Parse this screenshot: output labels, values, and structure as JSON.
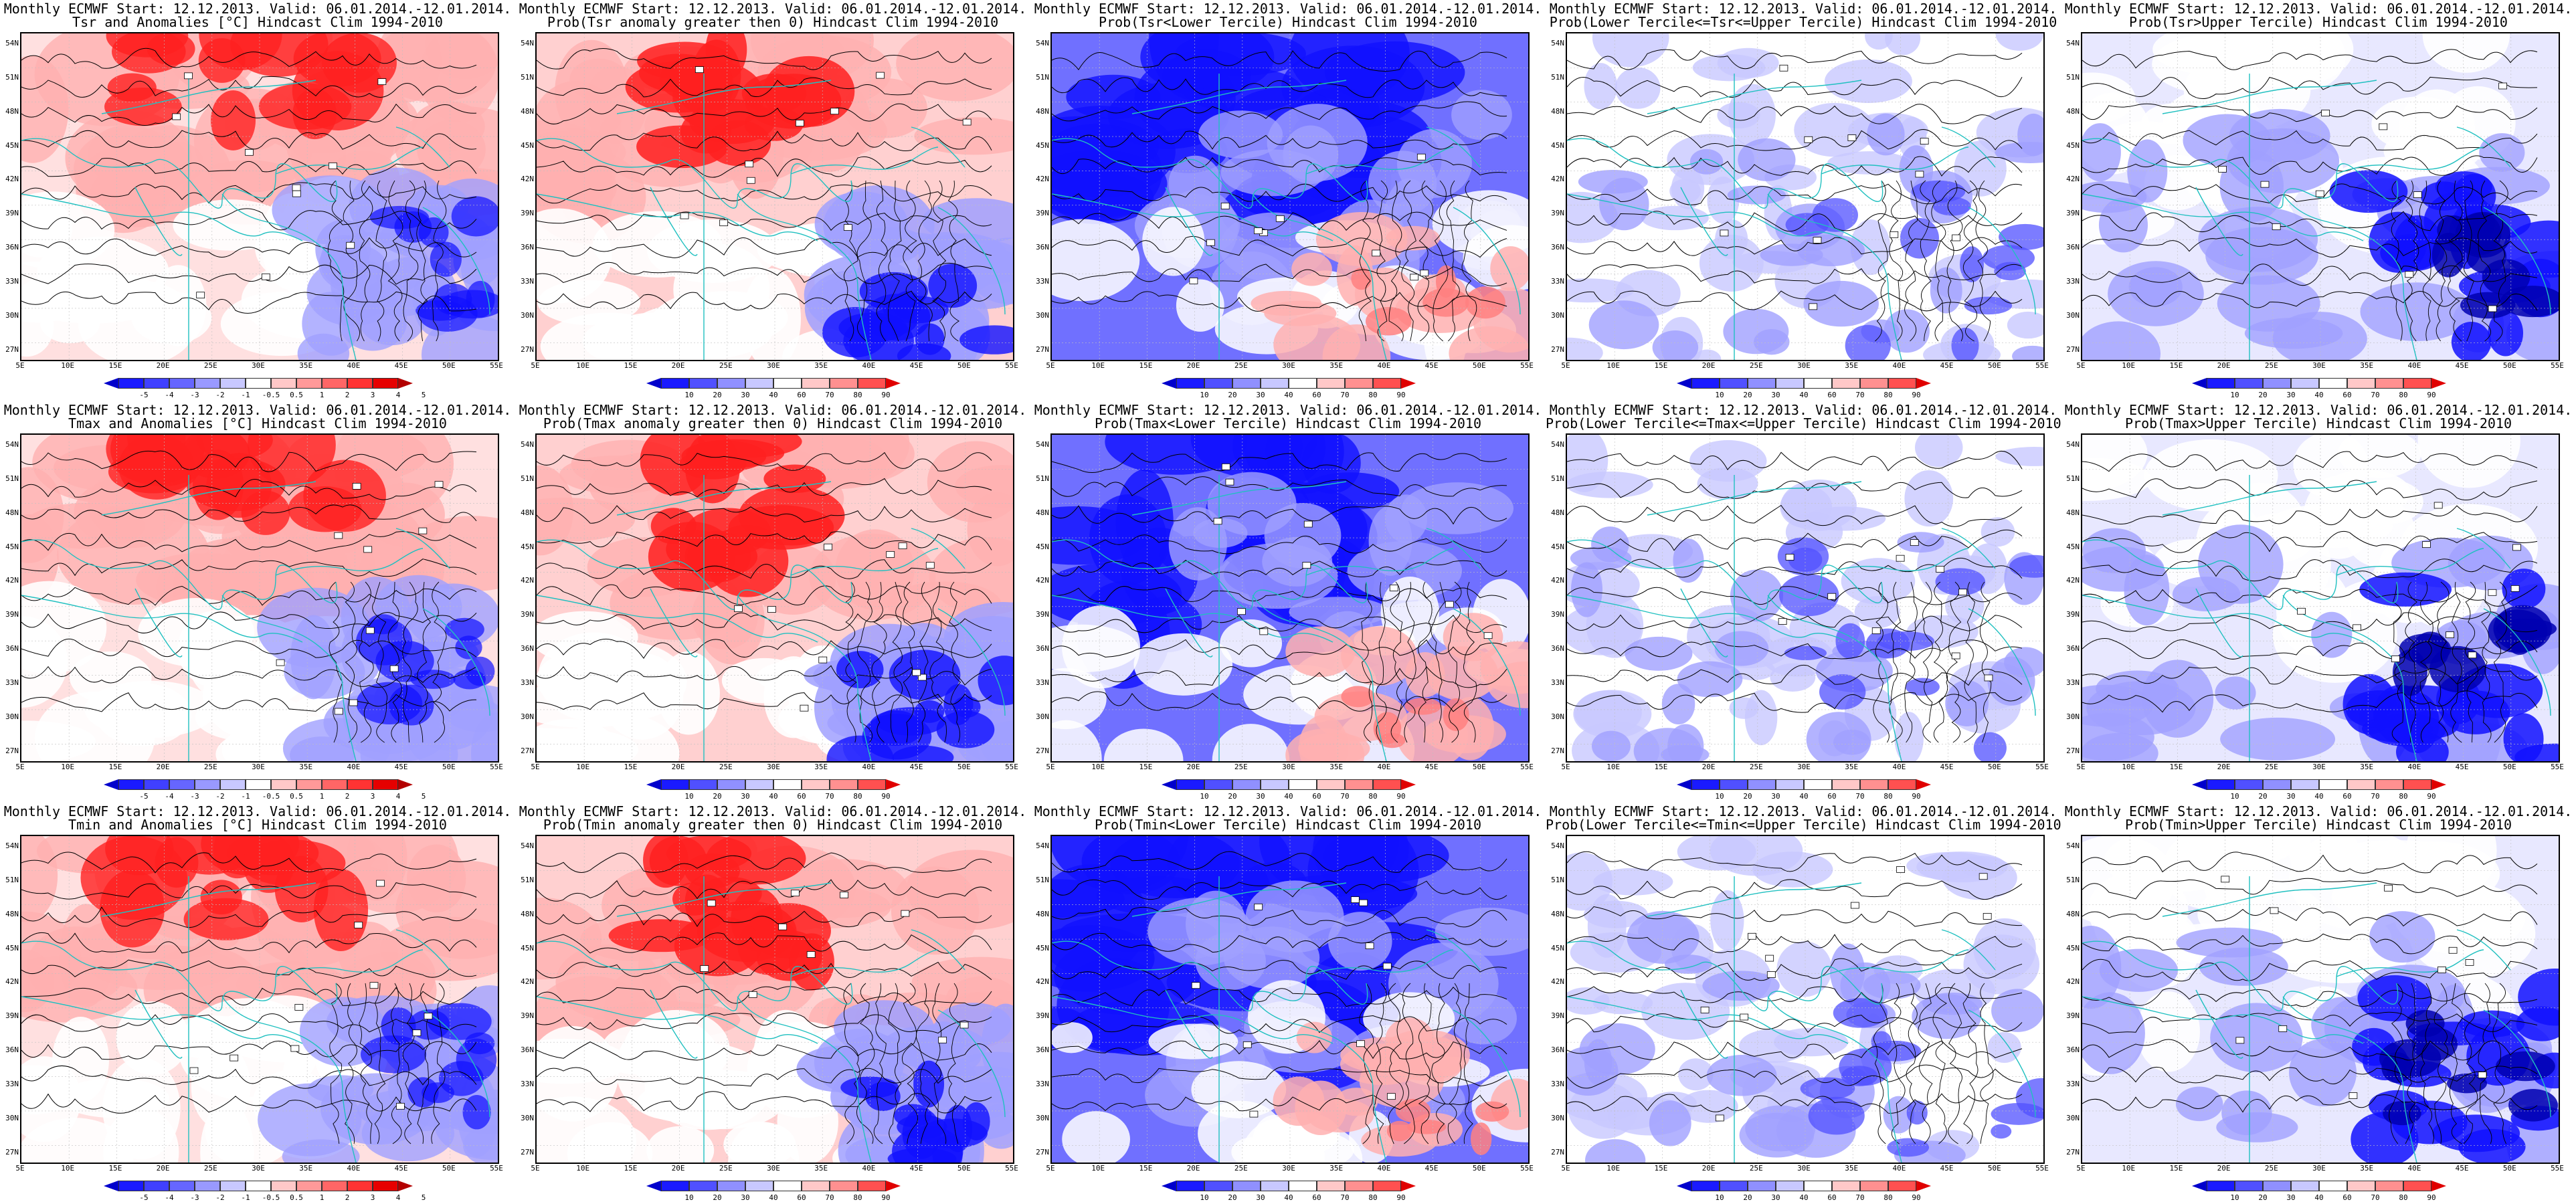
{
  "columns": [
    {
      "id": "anomaly",
      "scale": "anomaly"
    },
    {
      "id": "prob_gt0",
      "scale": "prob"
    },
    {
      "id": "prob_lower",
      "scale": "prob"
    },
    {
      "id": "prob_middle",
      "scale": "prob"
    },
    {
      "id": "prob_upper",
      "scale": "prob"
    }
  ],
  "panels": [
    [
      {
        "line1": "Monthly ECMWF Start: 12.12.2013. Valid: 06.01.2014.-12.01.2014.",
        "line2": "Tsr and Anomalies [°C] Hindcast Clim 1994-2010",
        "pattern": "anom"
      },
      {
        "line1": "Monthly ECMWF Start: 12.12.2013. Valid: 06.01.2014.-12.01.2014.",
        "line2": "Prob(Tsr anomaly greater then 0) Hindcast Clim 1994-2010",
        "pattern": "warm"
      },
      {
        "line1": "Monthly ECMWF Start: 12.12.2013. Valid: 06.01.2014.-12.01.2014.",
        "line2": "Prob(Tsr<Lower Tercile) Hindcast Clim 1994-2010",
        "pattern": "lowerprob"
      },
      {
        "line1": "Monthly ECMWF Start: 12.12.2013. Valid: 06.01.2014.-12.01.2014.",
        "line2": "Prob(Lower Tercile<=Tsr<=Upper Tercile) Hindcast Clim 1994-2010",
        "pattern": "mid"
      },
      {
        "line1": "Monthly ECMWF Start: 12.12.2013. Valid: 06.01.2014.-12.01.2014.",
        "line2": "Prob(Tsr>Upper Tercile) Hindcast Clim 1994-2010",
        "pattern": "upper"
      }
    ],
    [
      {
        "line1": "Monthly ECMWF Start: 12.12.2013. Valid: 06.01.2014.-12.01.2014.",
        "line2": "Tmax and Anomalies [°C] Hindcast Clim 1994-2010",
        "pattern": "anom"
      },
      {
        "line1": "Monthly ECMWF Start: 12.12.2013. Valid: 06.01.2014.-12.01.2014.",
        "line2": "Prob(Tmax anomaly greater then 0) Hindcast Clim 1994-2010",
        "pattern": "warm"
      },
      {
        "line1": "Monthly ECMWF Start: 12.12.2013. Valid: 06.01.2014.-12.01.2014.",
        "line2": "Prob(Tmax<Lower Tercile) Hindcast Clim 1994-2010",
        "pattern": "lowerprob"
      },
      {
        "line1": "Monthly ECMWF Start: 12.12.2013. Valid: 06.01.2014.-12.01.2014.",
        "line2": "Prob(Lower Tercile<=Tmax<=Upper Tercile) Hindcast Clim 1994-2010",
        "pattern": "mid"
      },
      {
        "line1": "Monthly ECMWF Start: 12.12.2013. Valid: 06.01.2014.-12.01.2014.",
        "line2": "Prob(Tmax>Upper Tercile) Hindcast Clim 1994-2010",
        "pattern": "upper"
      }
    ],
    [
      {
        "line1": "Monthly ECMWF Start: 12.12.2013. Valid: 06.01.2014.-12.01.2014.",
        "line2": "Tmin and Anomalies [°C] Hindcast Clim 1994-2010",
        "pattern": "anom"
      },
      {
        "line1": "Monthly ECMWF Start: 12.12.2013. Valid: 06.01.2014.-12.01.2014.",
        "line2": "Prob(Tmin anomaly greater then 0) Hindcast Clim 1994-2010",
        "pattern": "warm"
      },
      {
        "line1": "Monthly ECMWF Start: 12.12.2013. Valid: 06.01.2014.-12.01.2014.",
        "line2": "Prob(Tmin<Lower Tercile) Hindcast Clim 1994-2010",
        "pattern": "lowerprob"
      },
      {
        "line1": "Monthly ECMWF Start: 12.12.2013. Valid: 06.01.2014.-12.01.2014.",
        "line2": "Prob(Lower Tercile<=Tmin<=Upper Tercile) Hindcast Clim 1994-2010",
        "pattern": "mid"
      },
      {
        "line1": "Monthly ECMWF Start: 12.12.2013. Valid: 06.01.2014.-12.01.2014.",
        "line2": "Prob(Tmin>Upper Tercile) Hindcast Clim 1994-2010",
        "pattern": "upper"
      }
    ]
  ],
  "lat_labels": [
    "54N",
    "51N",
    "48N",
    "45N",
    "42N",
    "39N",
    "36N",
    "33N",
    "30N",
    "27N"
  ],
  "lon_labels": [
    "5E",
    "10E",
    "15E",
    "20E",
    "25E",
    "30E",
    "35E",
    "40E",
    "45E",
    "50E",
    "55E"
  ],
  "scales": {
    "anomaly": {
      "labels": [
        "-5",
        "-4",
        "-3",
        "-2",
        "-1",
        "-0.5",
        "0.5",
        "1",
        "2",
        "3",
        "4",
        "5"
      ],
      "colors": [
        "#0000cc",
        "#1a1aff",
        "#4040ff",
        "#6666ff",
        "#9999ff",
        "#c8c8ff",
        "#ffffff",
        "#ffc8c8",
        "#ff9999",
        "#ff6666",
        "#ff3333",
        "#e60000",
        "#b30000"
      ]
    },
    "prob": {
      "labels": [
        "10",
        "20",
        "30",
        "40",
        "60",
        "70",
        "80",
        "90"
      ],
      "colors": [
        "#0000cc",
        "#1a1aff",
        "#5050ff",
        "#9090ff",
        "#c8c8ff",
        "#ffffff",
        "#ffc8c8",
        "#ff9090",
        "#ff5050",
        "#e00000"
      ]
    }
  },
  "colors": {
    "coast": "#20c0c0",
    "contour": "#000000",
    "strong_red": "#ff2020",
    "light_red": "#ffb0b0",
    "strong_blue": "#1010ff",
    "light_blue": "#a0a0ff"
  }
}
